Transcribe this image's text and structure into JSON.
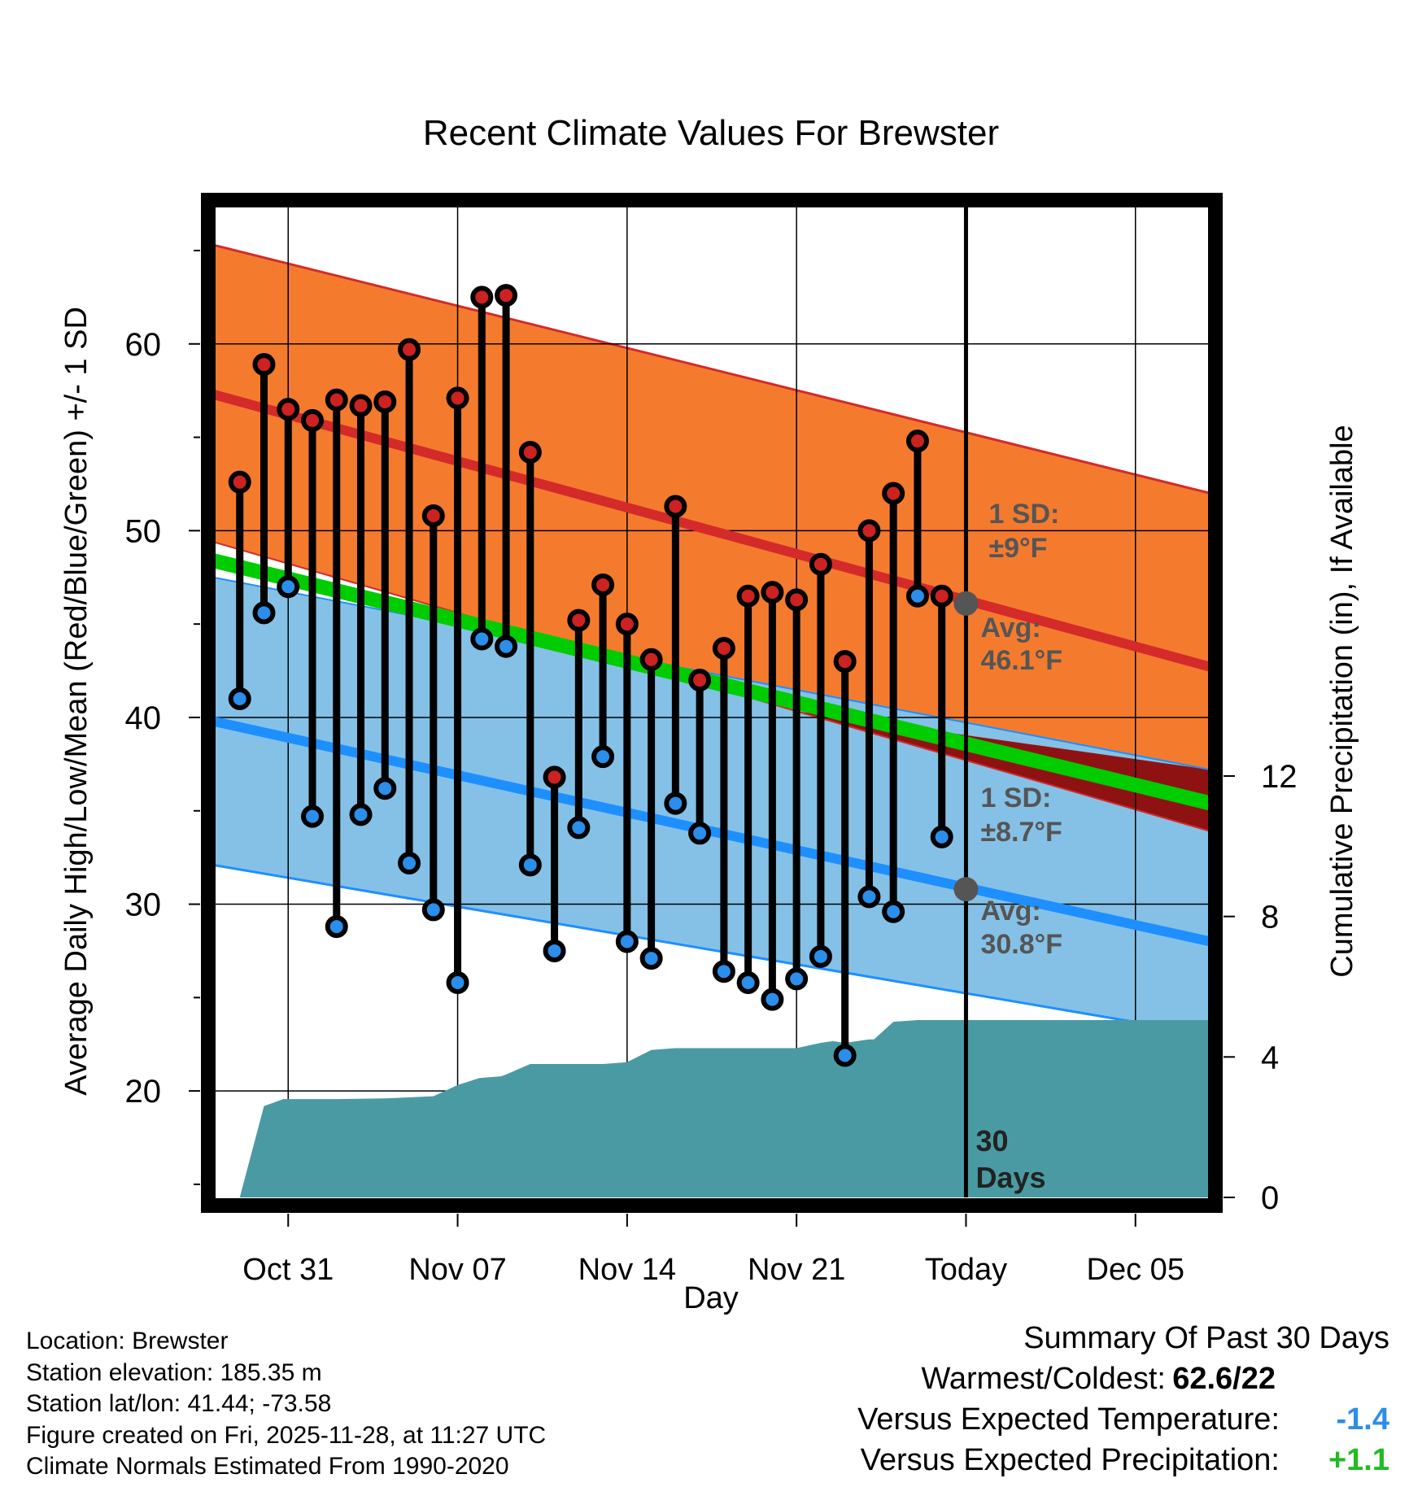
{
  "colors": {
    "high_band": "#f47b2e",
    "high_line": "#d42a2a",
    "low_band": "#85c1e6",
    "low_line": "#1e8fff",
    "green": "#00cc00",
    "dark_red": "#8f1212",
    "precip": "#4a9aa3",
    "avg_dot": "#555555",
    "high_marker": "#cc2222",
    "low_marker": "#2a8eea",
    "temp_delta": "#2a8eea",
    "precip_delta": "#22bb22"
  },
  "chart_data": {
    "type": "line",
    "title": "Recent Climate Values For Brewster",
    "xlabel": "Day",
    "ylabel": "Average Daily High/Low/Mean (Red/Blue/Green) +/- 1 SD",
    "y2label": "Cumulative Precipitation (in), If Available",
    "xlim": [
      -3.1,
      38.1
    ],
    "ylim": [
      14.3,
      67.7
    ],
    "y2lim": [
      0,
      28.4
    ],
    "x_ticks": [
      {
        "x": 0,
        "label": "Oct 31"
      },
      {
        "x": 7,
        "label": "Nov 07"
      },
      {
        "x": 14,
        "label": "Nov 14"
      },
      {
        "x": 21,
        "label": "Nov 21"
      },
      {
        "x": 28,
        "label": "Today"
      },
      {
        "x": 35,
        "label": "Dec 05"
      }
    ],
    "y_ticks": [
      20,
      30,
      40,
      50,
      60
    ],
    "y2_ticks": [
      0,
      4,
      8,
      12
    ],
    "today_x": 28,
    "today_label_num": "30",
    "today_label_word": "Days",
    "normals": {
      "x": [
        -3.1,
        38.1
      ],
      "high_mean": [
        57.3,
        42.7
      ],
      "high_upper": [
        65.3,
        52.0
      ],
      "high_lower": [
        49.4,
        33.9
      ],
      "low_mean": [
        39.8,
        28.0
      ],
      "low_upper": [
        47.5,
        37.2
      ],
      "low_lower": [
        32.1,
        23.0
      ],
      "mean": [
        48.4,
        35.4
      ]
    },
    "annotations": {
      "high_sd": {
        "line1": "1 SD:",
        "line2": "±9°F"
      },
      "high_avg": {
        "line1": "Avg:",
        "line2": "46.1°F",
        "value": 46.1
      },
      "low_sd": {
        "line1": "1 SD:",
        "line2": "±8.7°F"
      },
      "low_avg": {
        "line1": "Avg:",
        "line2": "30.8°F",
        "value": 30.8
      }
    },
    "series": [
      {
        "name": "High",
        "x": [
          -2,
          -1,
          0,
          1,
          2,
          3,
          4,
          5,
          6,
          7,
          8,
          9,
          10,
          11,
          12,
          13,
          14,
          15,
          16,
          17,
          18,
          19,
          20,
          21,
          22,
          23,
          24,
          25,
          26,
          27
        ],
        "values": [
          52.6,
          58.9,
          56.5,
          55.9,
          57.0,
          56.7,
          56.9,
          59.7,
          50.8,
          57.1,
          62.5,
          62.6,
          54.2,
          36.8,
          45.2,
          47.1,
          45.0,
          43.1,
          51.3,
          42.0,
          43.7,
          46.5,
          46.7,
          46.3,
          48.2,
          43.0,
          50.0,
          52.0,
          54.8,
          46.5
        ]
      },
      {
        "name": "Low",
        "x": [
          -2,
          -1,
          0,
          1,
          2,
          3,
          4,
          5,
          6,
          7,
          8,
          9,
          10,
          11,
          12,
          13,
          14,
          15,
          16,
          17,
          18,
          19,
          20,
          21,
          22,
          23,
          24,
          25,
          26,
          27
        ],
        "values": [
          41.0,
          45.6,
          47.0,
          34.7,
          28.8,
          34.8,
          36.2,
          32.2,
          29.7,
          25.8,
          44.2,
          43.8,
          32.1,
          27.5,
          34.1,
          37.9,
          28.0,
          27.1,
          35.4,
          33.8,
          26.4,
          25.8,
          24.9,
          26.0,
          27.2,
          21.9,
          30.4,
          29.6,
          46.5,
          33.6
        ]
      },
      {
        "name": "Cumulative Precipitation",
        "axis": "y2",
        "x": [
          -2,
          -1,
          -0.2,
          2,
          4,
          5,
          6,
          7,
          7.9,
          8.8,
          9,
          10,
          13,
          14,
          15,
          16,
          17,
          18,
          19,
          20,
          21,
          22,
          22.5,
          23,
          24,
          24.2,
          25,
          26,
          27,
          28,
          38.1
        ],
        "values": [
          0,
          2.6,
          2.8,
          2.8,
          2.82,
          2.85,
          2.88,
          3.2,
          3.4,
          3.45,
          3.5,
          3.8,
          3.8,
          3.85,
          4.2,
          4.25,
          4.25,
          4.25,
          4.25,
          4.25,
          4.25,
          4.4,
          4.45,
          4.4,
          4.5,
          4.5,
          5.0,
          5.05,
          5.05,
          5.05,
          5.05
        ]
      }
    ]
  },
  "footer": {
    "location": "Location: Brewster",
    "elevation": "Station elevation: 185.35 m",
    "latlon": "Station lat/lon: 41.44; -73.58",
    "created": "Figure created on Fri, 2025-11-28, at 11:27 UTC",
    "normals_note": "Climate Normals Estimated From 1990-2020"
  },
  "summary": {
    "title": "Summary Of Past 30 Days",
    "warm_cold_label": "Warmest/Coldest:",
    "warm_cold_value": "62.6/22",
    "temp_label": "Versus Expected Temperature:",
    "temp_value": "-1.4",
    "precip_label": "Versus Expected Precipitation:",
    "precip_value": "+1.1"
  }
}
